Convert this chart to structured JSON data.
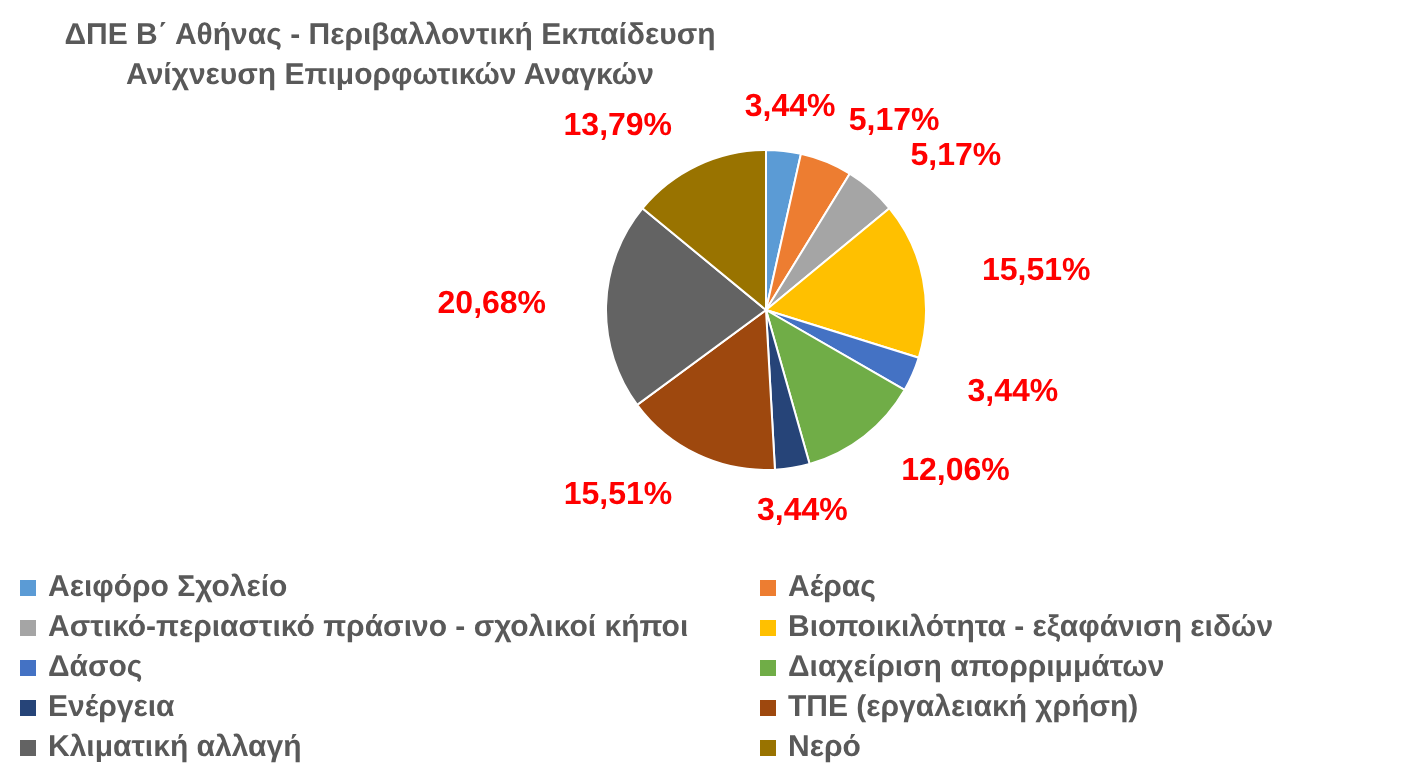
{
  "chart_data": {
    "type": "pie",
    "title": "ΔΠΕ Β΄ Αθήνας - Περιβαλλοντική Εκπαίδευση\nΑνίχνευση Επιμορφωτικών Αναγκών",
    "categories": [
      "Αειφόρο Σχολείο",
      "Αέρας",
      "Αστικό-περιαστικό πράσινο - σχολικοί κήποι",
      "Βιοποικιλότητα - εξαφάνιση ειδών",
      "Δάσος",
      "Διαχείριση απορριμμάτων",
      "Ενέργεια",
      "ΤΠΕ (εργαλειακή χρήση)",
      "Κλιματική αλλαγή",
      "Νερό"
    ],
    "values": [
      3.44,
      5.17,
      5.17,
      15.51,
      3.44,
      12.06,
      3.44,
      15.51,
      20.68,
      13.79
    ],
    "colors": [
      "#5b9bd5",
      "#ed7d31",
      "#a5a5a5",
      "#ffc000",
      "#4472c4",
      "#70ad47",
      "#264478",
      "#9e480e",
      "#636363",
      "#997300"
    ],
    "value_labels": [
      "3,44%",
      "5,17%",
      "5,17%",
      "15,51%",
      "3,44%",
      "12,06%",
      "3,44%",
      "15,51%",
      "20,68%",
      "13,79%"
    ],
    "legend": "bottom"
  }
}
